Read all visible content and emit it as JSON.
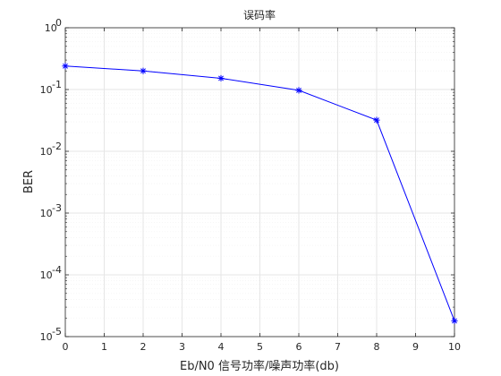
{
  "chart_data": {
    "type": "line",
    "title": "误码率",
    "xlabel": "Eb/N0 信号功率/噪声功率(db)",
    "ylabel": "BER",
    "xlim": [
      0,
      10
    ],
    "ylim": [
      1e-05,
      1
    ],
    "yscale": "log",
    "grid": true,
    "minor_grid": true,
    "x_ticks": [
      0,
      1,
      2,
      3,
      4,
      5,
      6,
      7,
      8,
      9,
      10
    ],
    "y_ticks": [
      {
        "base": "10",
        "exp": "0",
        "value": 1
      },
      {
        "base": "10",
        "exp": "-1",
        "value": 0.1
      },
      {
        "base": "10",
        "exp": "-2",
        "value": 0.01
      },
      {
        "base": "10",
        "exp": "-3",
        "value": 0.001
      },
      {
        "base": "10",
        "exp": "-4",
        "value": 0.0001
      },
      {
        "base": "10",
        "exp": "-5",
        "value": 1e-05
      }
    ],
    "series": [
      {
        "x": [
          0,
          2,
          4,
          6,
          8,
          10
        ],
        "y": [
          0.24,
          0.2,
          0.152,
          0.097,
          0.032,
          1.8e-05
        ],
        "marker": "*",
        "color": "#0000ff"
      }
    ],
    "colors": {
      "line": "#0000ff",
      "axes": "#262626",
      "grid": "#e6e6e6",
      "minor_grid": "#f0f0f0"
    }
  }
}
